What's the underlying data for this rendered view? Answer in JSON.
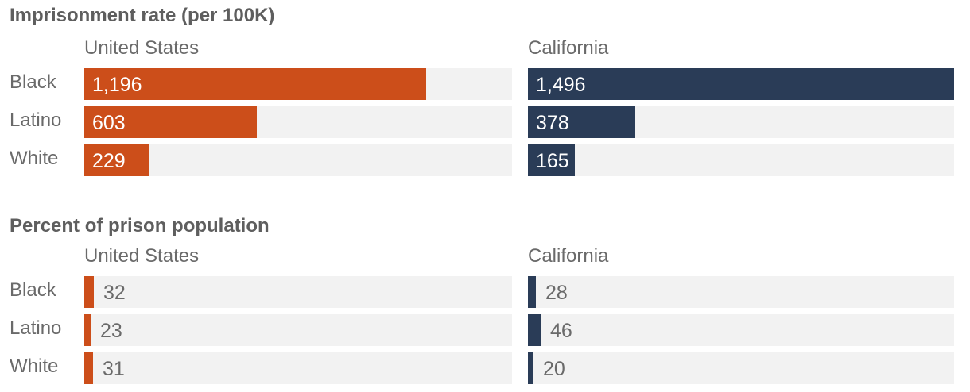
{
  "colors": {
    "united_states": "#cc4e1a",
    "california": "#2a3c57",
    "track": "#f2f2f2"
  },
  "chart_data": [
    {
      "type": "bar",
      "orientation": "horizontal",
      "title": "Imprisonment rate (per 100K)",
      "categories": [
        "Black",
        "Latino",
        "White"
      ],
      "series": [
        {
          "name": "United States",
          "values": [
            1196,
            603,
            229
          ],
          "labels": [
            "1,196",
            "603",
            "229"
          ]
        },
        {
          "name": "California",
          "values": [
            1496,
            378,
            165
          ],
          "labels": [
            "1,496",
            "378",
            "165"
          ]
        }
      ],
      "xlim": [
        0,
        1496
      ],
      "grid": false
    },
    {
      "type": "bar",
      "orientation": "horizontal",
      "title": "Percent of prison population",
      "categories": [
        "Black",
        "Latino",
        "White"
      ],
      "series": [
        {
          "name": "United States",
          "values": [
            32,
            23,
            31
          ],
          "labels": [
            "32",
            "23",
            "31"
          ]
        },
        {
          "name": "California",
          "values": [
            28,
            46,
            20
          ],
          "labels": [
            "28",
            "46",
            "20"
          ]
        }
      ],
      "xlim": [
        0,
        1496
      ],
      "grid": false
    }
  ]
}
